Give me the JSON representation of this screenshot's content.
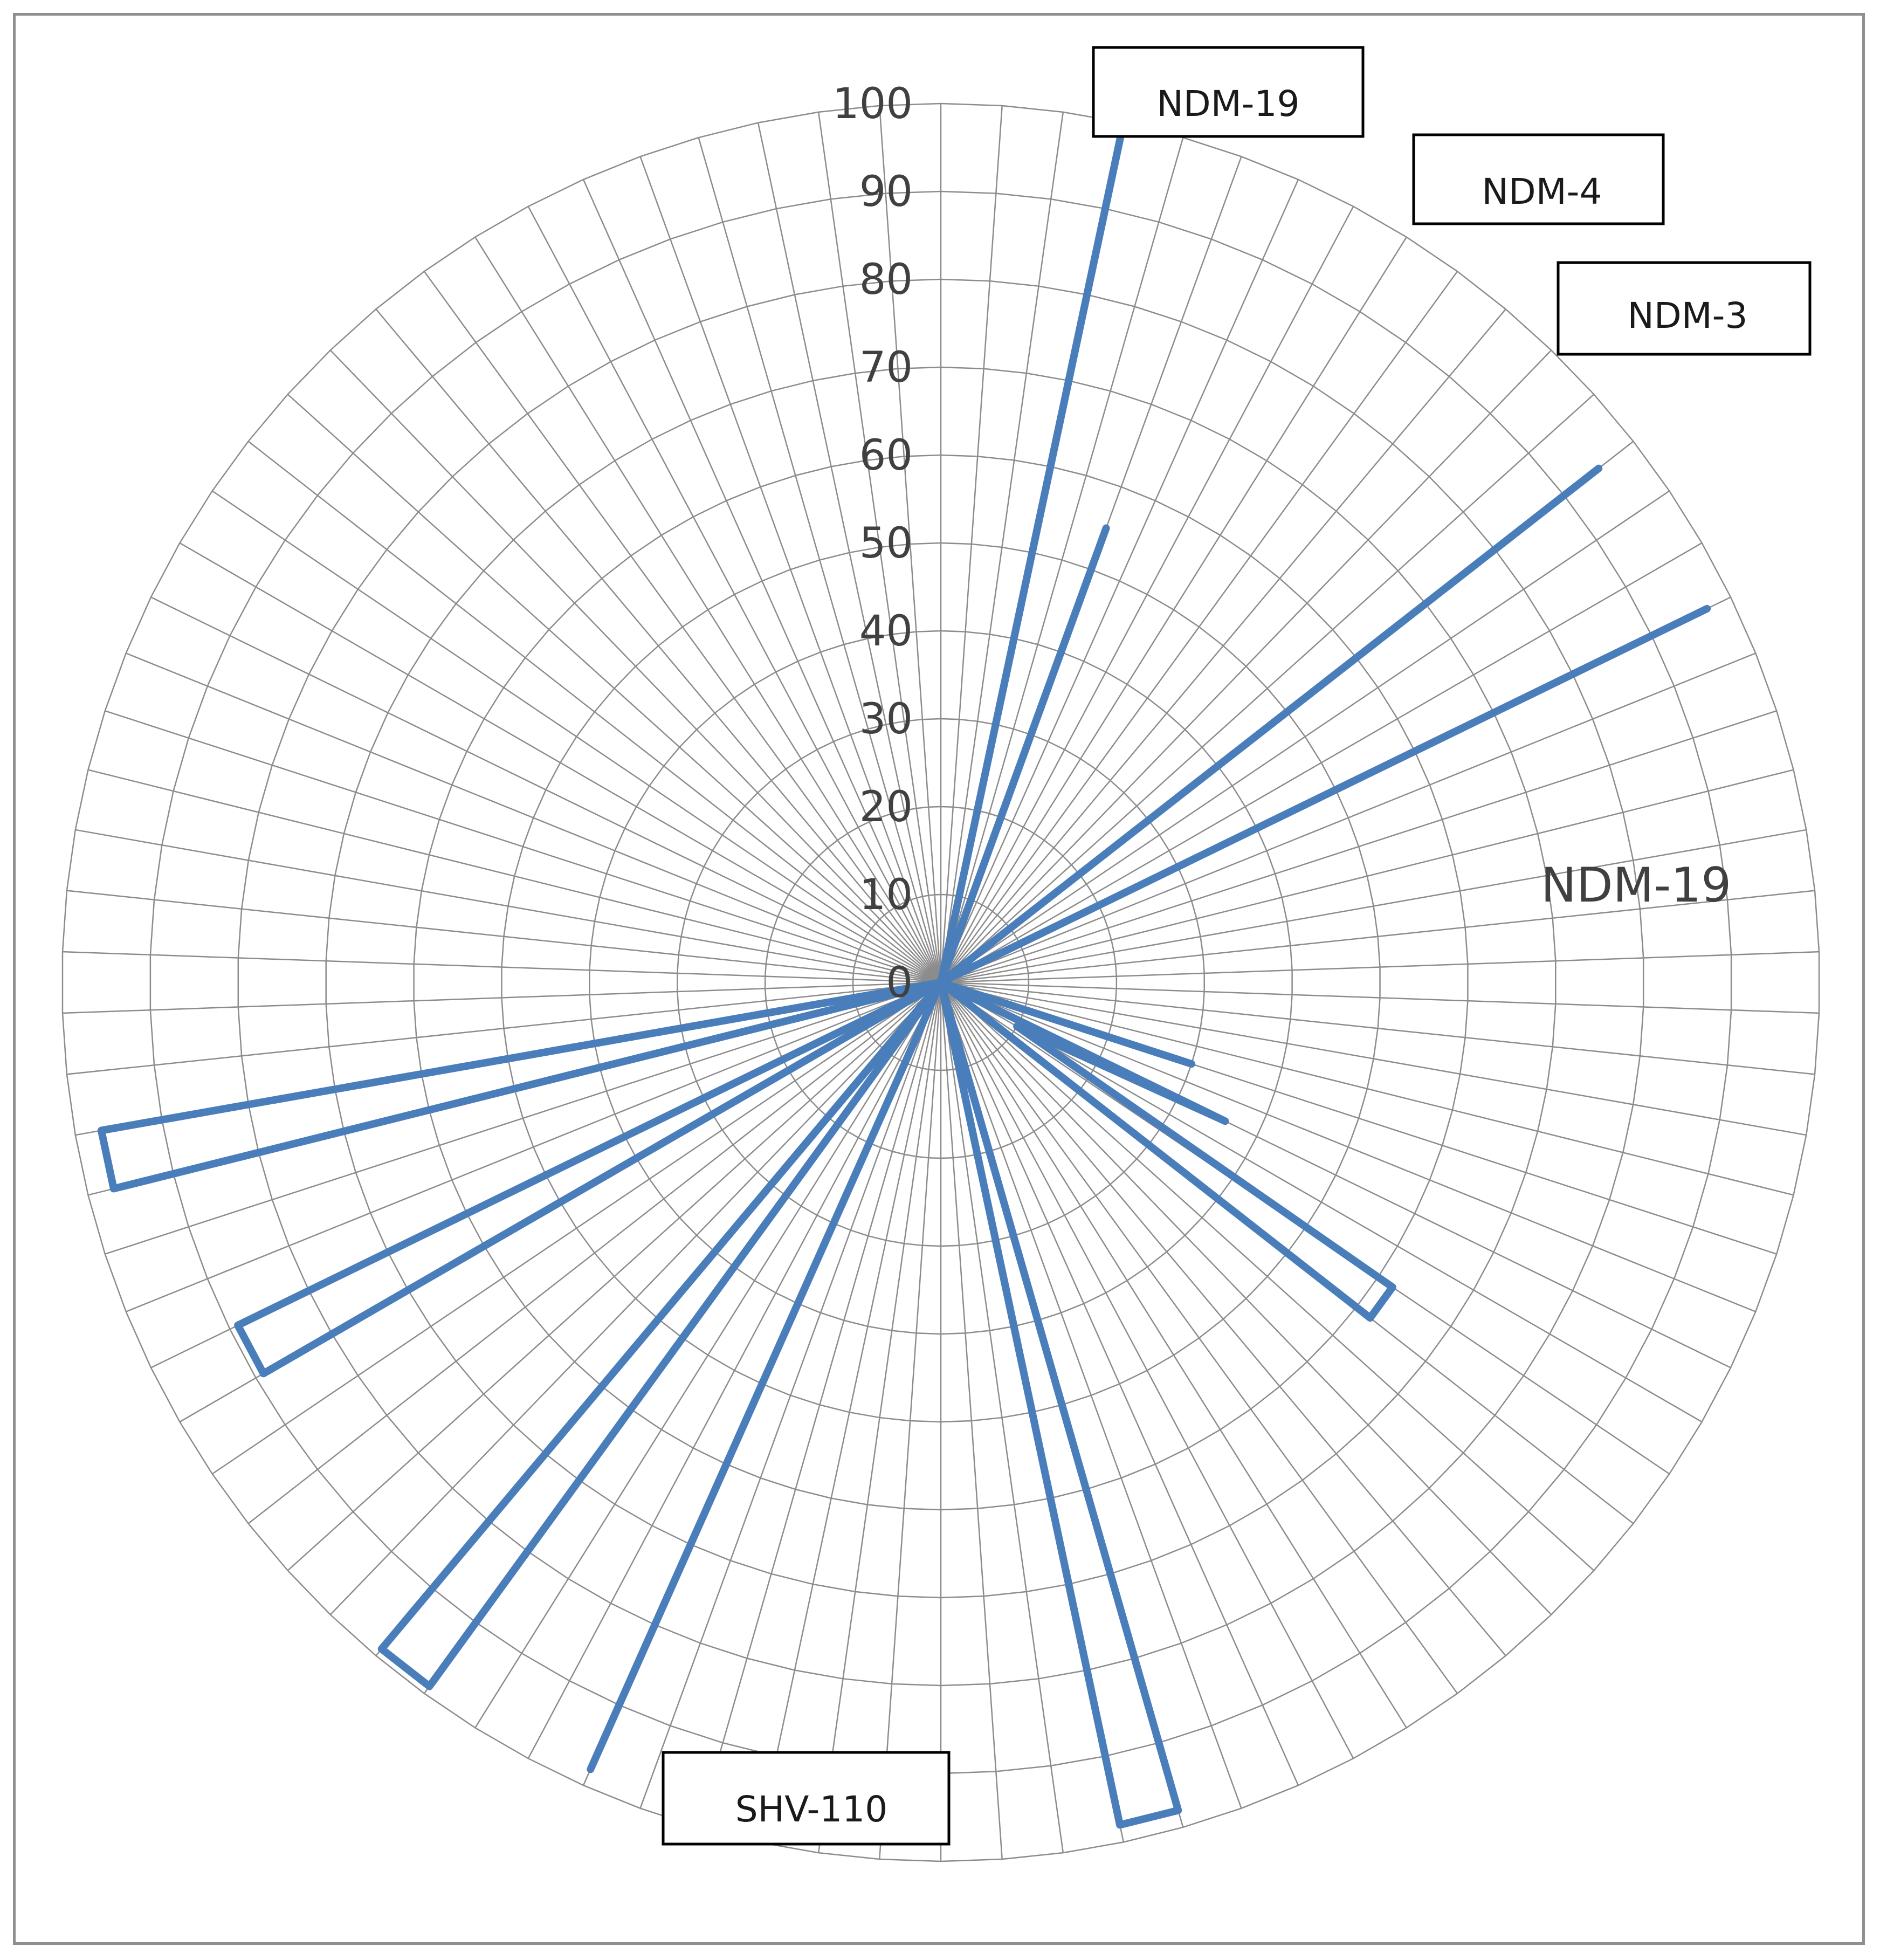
{
  "chart_data": {
    "type": "radar",
    "title": "",
    "subtitle": "",
    "rlim": [
      0,
      100
    ],
    "r_ticks": [
      0,
      10,
      20,
      30,
      40,
      50,
      60,
      70,
      80,
      90,
      100
    ],
    "r_tick_labels": [
      "0",
      "10",
      "20",
      "30",
      "40",
      "50",
      "60",
      "70",
      "80",
      "90",
      "100"
    ],
    "n_axes": 90,
    "axis_labels_shown": false,
    "grid": true,
    "legend": "none",
    "series": [
      {
        "values": [
          0,
          0,
          0,
          99,
          0,
          55,
          0,
          0,
          0,
          0,
          0,
          0,
          0,
          95,
          0,
          0,
          97,
          0,
          0,
          0,
          0,
          0,
          0,
          0,
          0,
          0,
          0,
          30,
          0,
          36,
          10,
          62,
          62,
          0,
          0,
          0,
          0,
          0,
          0,
          0,
          0,
          98,
          98,
          0,
          0,
          0,
          0,
          0,
          0,
          0,
          0,
          98,
          0,
          0,
          99,
          99,
          0,
          0,
          0,
          0,
          89,
          89,
          0,
          0,
          97,
          97,
          0,
          0,
          0,
          0,
          0,
          0,
          0,
          0,
          0,
          0,
          0,
          0,
          0,
          0,
          0,
          0,
          0,
          0,
          0,
          0,
          0,
          0,
          0,
          0
        ],
        "color": "#4a7ebb"
      }
    ]
  },
  "labels": {
    "ndm19_top": "NDM-19",
    "ndm4": "NDM-4",
    "ndm3": "NDM-3",
    "ndm19_right": "NDM-19",
    "shv110": "SHV-110"
  }
}
